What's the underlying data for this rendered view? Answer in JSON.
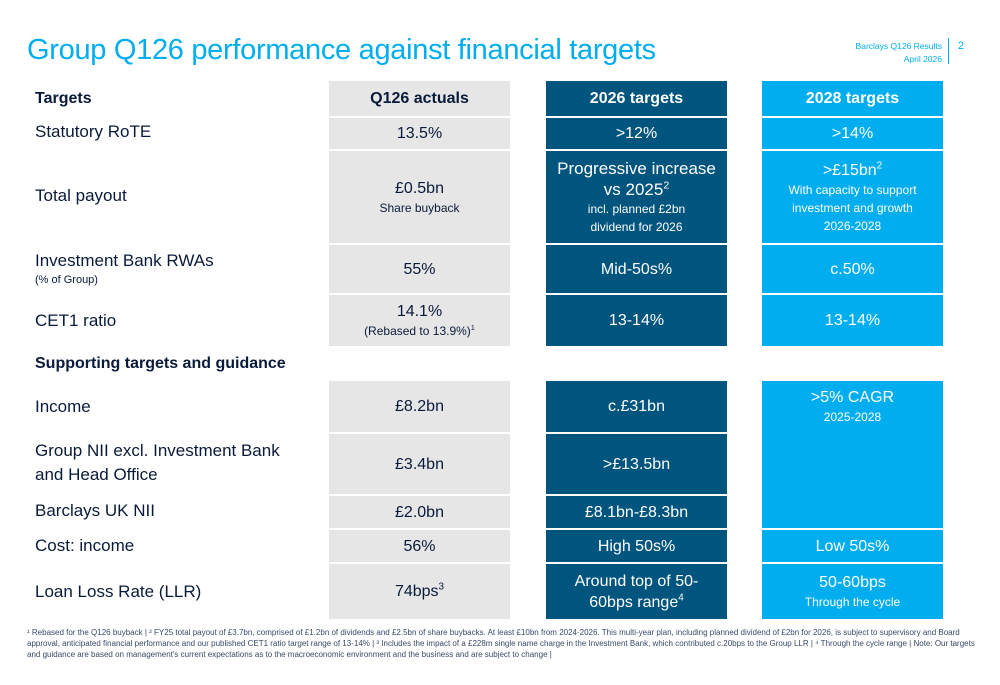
{
  "title": "Group Q126 performance against financial targets",
  "header": {
    "line1": "Barclays Q126 Results",
    "line2": "April 2026",
    "page": "2"
  },
  "columns": {
    "targets": "Targets",
    "actuals": "Q126 actuals",
    "t2026": "2026 targets",
    "t2028": "2028 targets"
  },
  "rows": {
    "rote": {
      "label": "Statutory RoTE",
      "actual": "13.5%",
      "t2026": ">12%",
      "t2028": ">14%"
    },
    "payout": {
      "label": "Total payout",
      "actual": "£0.5bn",
      "actual_sub": "Share buyback",
      "t2026_l1": "Progressive increase",
      "t2026_l2": "vs 2025",
      "t2026_sup": "2",
      "t2026_sub1": "incl. planned £2bn",
      "t2026_sub2": "dividend for 2026",
      "t2028": ">£15bn",
      "t2028_sup": "2",
      "t2028_sub1": "With capacity to support",
      "t2028_sub2": "investment and growth",
      "t2028_sub3": "2026-2028"
    },
    "ib": {
      "label": "Investment Bank RWAs",
      "label_sub": "(% of Group)",
      "actual": "55%",
      "t2026": "Mid-50s%",
      "t2028": "c.50%"
    },
    "cet1": {
      "label": "CET1 ratio",
      "actual": "14.1%",
      "actual_sub": "(Rebased to 13.9%)",
      "actual_sup": "1",
      "t2026": "13-14%",
      "t2028": "13-14%"
    }
  },
  "supporting_heading": "Supporting targets and guidance",
  "rows2": {
    "income": {
      "label": "Income",
      "actual": "£8.2bn",
      "t2026": "c.£31bn",
      "t2028": ">5% CAGR",
      "t2028_sub": "2025-2028"
    },
    "nii": {
      "label_l1": "Group NII excl. Investment Bank",
      "label_l2": "and Head Office",
      "actual": "£3.4bn",
      "t2026": ">£13.5bn"
    },
    "ukii": {
      "label": "Barclays UK NII",
      "actual": "£2.0bn",
      "t2026": "£8.1bn-£8.3bn"
    },
    "cost": {
      "label": "Cost: income",
      "actual": "56%",
      "t2026": "High 50s%",
      "t2028": "Low 50s%"
    },
    "llr": {
      "label": "Loan Loss Rate (LLR)",
      "actual": "74bps",
      "actual_sup": "3",
      "t2026_l1": "Around top of 50-",
      "t2026_l2": "60bps range",
      "t2026_sup": "4",
      "t2028": "50-60bps",
      "t2028_sub": "Through the cycle"
    }
  },
  "footnote": "¹ Rebased for the Q126 buyback | ² FY25 total payout of £3.7bn, comprised of £1.2bn of dividends and £2.5bn of share buybacks. At least £10bn from 2024-2026. This multi-year plan, including planned dividend of £2bn for 2026, is subject to supervisory and Board approval, anticipated financial performance and our published CET1 ratio target range of 13-14% | ³ Includes the impact of a £228m single name charge in the Investment Bank, which contributed c.20bps to the Group LLR | ⁴ Through the cycle range | Note: Our targets and guidance are based on management's current expectations as to the macroeconomic environment and the business and are subject to change |",
  "colors": {
    "accent": "#00aeef",
    "dark": "#00557f",
    "grey": "#e6e6e6"
  }
}
